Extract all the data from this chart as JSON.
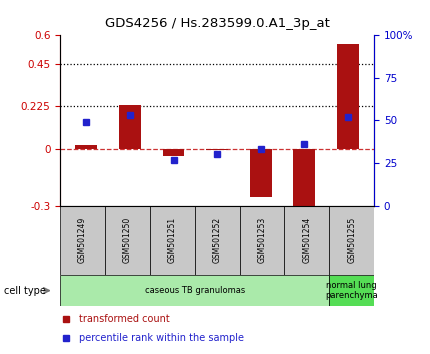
{
  "title": "GDS4256 / Hs.283599.0.A1_3p_at",
  "samples": [
    "GSM501249",
    "GSM501250",
    "GSM501251",
    "GSM501252",
    "GSM501253",
    "GSM501254",
    "GSM501255"
  ],
  "red_bars": [
    0.022,
    0.23,
    -0.04,
    -0.008,
    -0.255,
    -0.345,
    0.555
  ],
  "blue_dots": [
    49,
    53,
    27,
    30,
    33,
    36,
    52
  ],
  "ylim_left": [
    -0.3,
    0.6
  ],
  "ylim_right": [
    0,
    100
  ],
  "left_yticks": [
    -0.3,
    0,
    0.225,
    0.45,
    0.6
  ],
  "right_yticks": [
    0,
    25,
    50,
    75,
    100
  ],
  "hlines_dotted": [
    0.225,
    0.45
  ],
  "hline_dashed": 0,
  "bar_color": "#aa1111",
  "dot_color": "#2222cc",
  "bar_width": 0.5,
  "cell_type_groups": [
    {
      "label": "caseous TB granulomas",
      "samples_idx": [
        0,
        1,
        2,
        3,
        4,
        5
      ],
      "color": "#aaeaaa"
    },
    {
      "label": "normal lung\nparenchyma",
      "samples_idx": [
        6
      ],
      "color": "#55dd55"
    }
  ],
  "legend_red": "transformed count",
  "legend_blue": "percentile rank within the sample",
  "cell_type_label": "cell type",
  "background_sample_row": "#c8c8c8",
  "dotted_line_color": "#000000",
  "dashed_line_color": "#cc3333",
  "right_axis_color": "#0000cc",
  "left_axis_color": "#cc0000",
  "figsize": [
    4.3,
    3.54
  ],
  "dpi": 100
}
